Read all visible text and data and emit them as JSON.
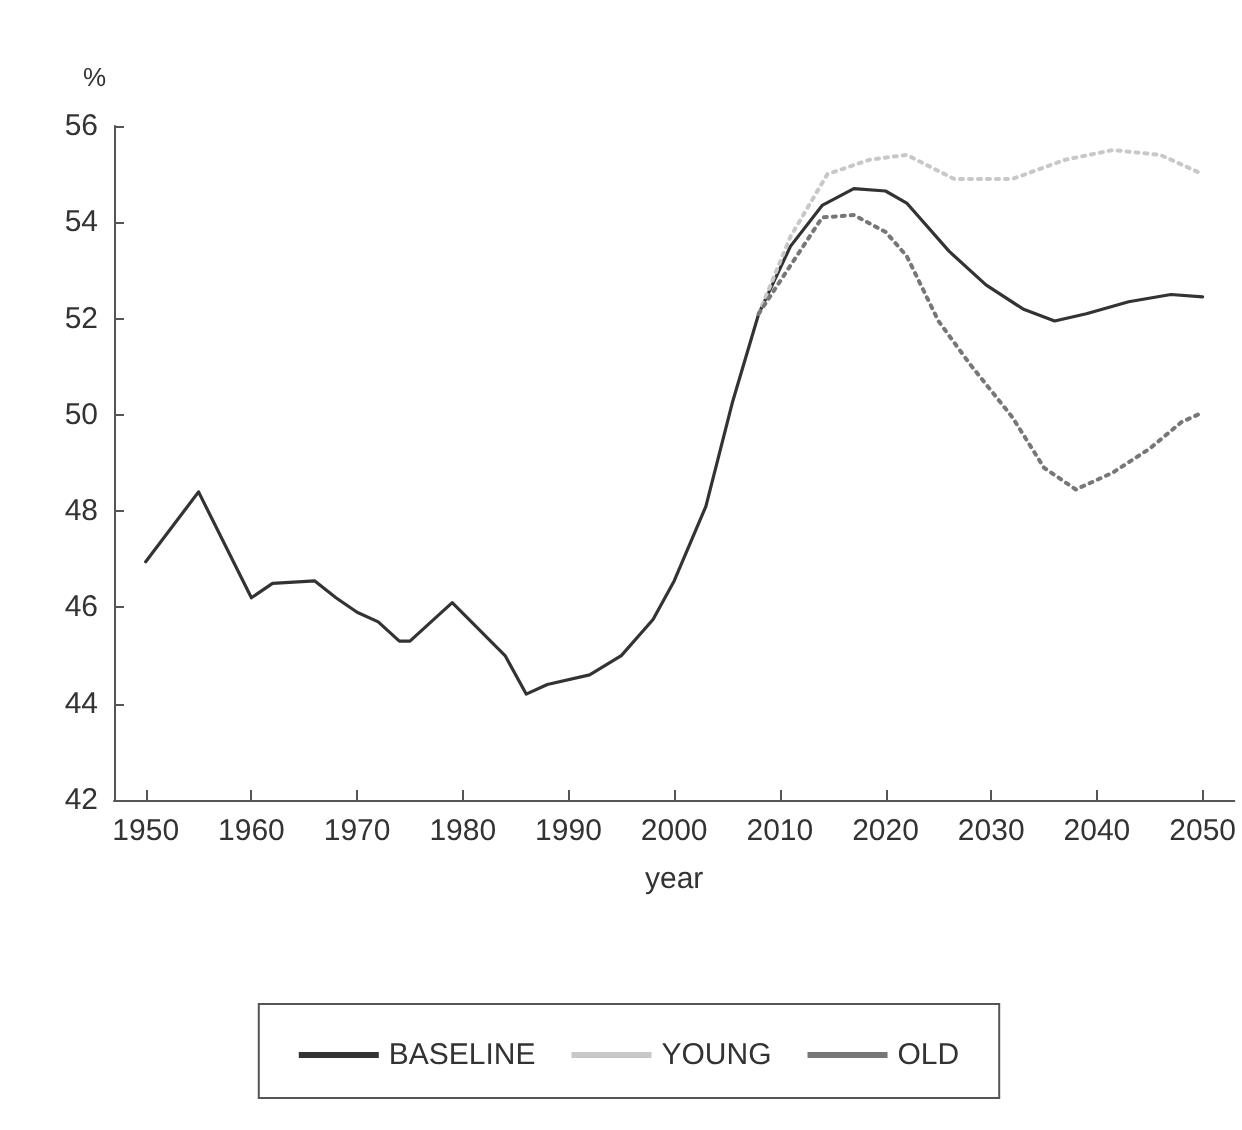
{
  "chart_data": {
    "type": "line",
    "xlabel": "year",
    "ylabel": "%",
    "xlim": [
      1947,
      2053
    ],
    "xticks": [
      1950,
      1960,
      1970,
      1980,
      1990,
      2000,
      2010,
      2020,
      2030,
      2040,
      2050
    ],
    "ylim": [
      42,
      56
    ],
    "yticks": [
      42,
      44,
      46,
      48,
      50,
      52,
      54,
      56
    ],
    "grid": false,
    "legend": "bottom",
    "marker": "none",
    "series": [
      {
        "name": "BASELINE",
        "color": "#333333",
        "line_style": "solid",
        "x": [
          1950,
          1955,
          1960,
          1962,
          1966,
          1968,
          1970,
          1972,
          1974,
          1975,
          1979,
          1984,
          1986,
          1988,
          1992,
          1995,
          1998,
          2000,
          2003,
          2005.5,
          2008,
          2011,
          2014,
          2017,
          2020,
          2022,
          2026,
          2029.5,
          2033,
          2036,
          2039,
          2043,
          2047,
          2050
        ],
        "values": [
          46.95,
          48.4,
          46.2,
          46.5,
          46.55,
          46.2,
          45.9,
          45.7,
          45.3,
          45.3,
          46.1,
          45.0,
          44.2,
          44.4,
          44.6,
          45.0,
          45.75,
          46.55,
          48.1,
          50.25,
          52.1,
          53.5,
          54.35,
          54.7,
          54.65,
          54.4,
          53.4,
          52.7,
          52.2,
          51.95,
          52.1,
          52.35,
          52.5,
          52.45
        ]
      },
      {
        "name": "YOUNG",
        "color": "#c8c8c8",
        "line_style": "dotted",
        "x": [
          2008,
          2011,
          2014.5,
          2018.5,
          2022,
          2026.5,
          2032,
          2037,
          2041.5,
          2046,
          2050
        ],
        "values": [
          52.1,
          53.7,
          55.0,
          55.3,
          55.4,
          54.9,
          54.9,
          55.3,
          55.5,
          55.4,
          55.0
        ]
      },
      {
        "name": "OLD",
        "color": "#777777",
        "line_style": "dotted",
        "x": [
          2008,
          2011,
          2014,
          2017,
          2020,
          2022,
          2025,
          2028,
          2032,
          2035,
          2038,
          2041.5,
          2045,
          2048,
          2050
        ],
        "values": [
          52.1,
          53.1,
          54.1,
          54.15,
          53.8,
          53.3,
          51.95,
          51.05,
          49.95,
          48.9,
          48.45,
          48.8,
          49.3,
          49.85,
          50.05
        ]
      }
    ]
  }
}
